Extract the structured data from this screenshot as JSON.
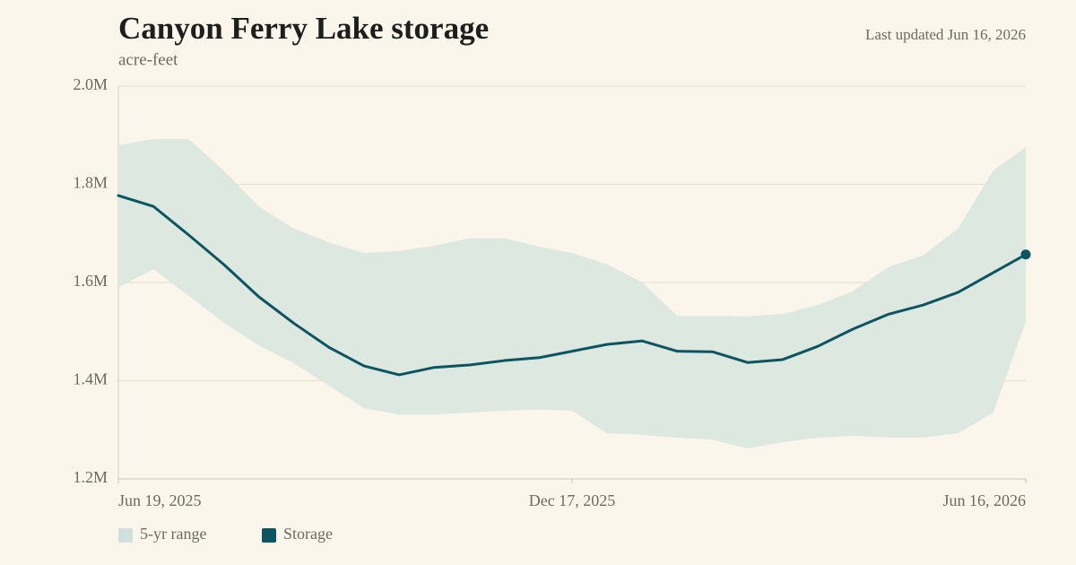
{
  "chart_data": {
    "type": "line",
    "title": "Canyon Ferry Lake storage",
    "subtitle": "acre-feet",
    "updated": "Last updated Jun 16, 2026",
    "x": [
      "2025-06-19",
      "2025-07-03",
      "2025-07-17",
      "2025-07-31",
      "2025-08-14",
      "2025-08-28",
      "2025-09-11",
      "2025-09-25",
      "2025-10-09",
      "2025-10-23",
      "2025-11-06",
      "2025-11-20",
      "2025-12-04",
      "2025-12-17",
      "2025-12-31",
      "2026-01-14",
      "2026-01-28",
      "2026-02-11",
      "2026-02-25",
      "2026-03-11",
      "2026-03-25",
      "2026-04-08",
      "2026-04-22",
      "2026-05-06",
      "2026-05-20",
      "2026-06-03",
      "2026-06-16"
    ],
    "xlim": [
      "2025-06-19",
      "2026-06-16"
    ],
    "xticks": [
      {
        "value": "2025-06-19",
        "label": "Jun 19, 2025"
      },
      {
        "value": "2025-12-17",
        "label": "Dec 17, 2025"
      },
      {
        "value": "2026-06-16",
        "label": "Jun 16, 2026"
      }
    ],
    "ylim": [
      1200000,
      2000000
    ],
    "yticks": [
      {
        "value": 1200000,
        "label": "1.2M"
      },
      {
        "value": 1400000,
        "label": "1.4M"
      },
      {
        "value": 1600000,
        "label": "1.6M"
      },
      {
        "value": 1800000,
        "label": "1.8M"
      },
      {
        "value": 2000000,
        "label": "2.0M"
      }
    ],
    "grid": true,
    "legend": "bottom-left",
    "band": {
      "name": "5-yr range",
      "color": "#dce8e0",
      "legend_color": "#cfe0dd",
      "high": [
        1880000,
        1892000,
        1892000,
        1828000,
        1755000,
        1710000,
        1682000,
        1660000,
        1664000,
        1675000,
        1690000,
        1690000,
        1673000,
        1660000,
        1637000,
        1600000,
        1532000,
        1532000,
        1531000,
        1536000,
        1554000,
        1582000,
        1631000,
        1655000,
        1710000,
        1828000,
        1876000
      ],
      "low": [
        1590000,
        1627000,
        1573000,
        1518000,
        1472000,
        1436000,
        1390000,
        1344000,
        1331000,
        1331000,
        1335000,
        1339000,
        1341000,
        1339000,
        1293000,
        1290000,
        1284000,
        1280000,
        1262000,
        1275000,
        1284000,
        1288000,
        1284000,
        1284000,
        1293000,
        1335000,
        1521000
      ]
    },
    "series": [
      {
        "name": "Storage",
        "color": "#0d5560",
        "values": [
          1777000,
          1755000,
          1697000,
          1637000,
          1571000,
          1517000,
          1468000,
          1430000,
          1412000,
          1427000,
          1432000,
          1441000,
          1447000,
          1460000,
          1474000,
          1481000,
          1460000,
          1459000,
          1437000,
          1443000,
          1470000,
          1505000,
          1535000,
          1554000,
          1580000,
          1620000,
          1657000
        ]
      }
    ]
  }
}
